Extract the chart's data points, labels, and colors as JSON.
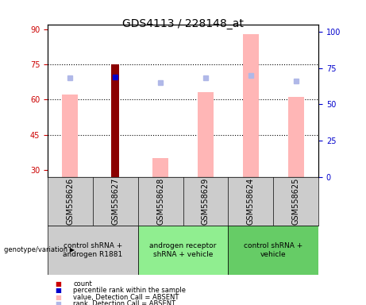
{
  "title": "GDS4113 / 228148_at",
  "samples": [
    "GSM558626",
    "GSM558627",
    "GSM558628",
    "GSM558629",
    "GSM558624",
    "GSM558625"
  ],
  "ylim_left": [
    27,
    92
  ],
  "ylim_right": [
    0,
    105
  ],
  "yticks_left": [
    30,
    45,
    60,
    75,
    90
  ],
  "yticks_right": [
    0,
    25,
    50,
    75,
    100
  ],
  "bar_data": {
    "GSM558626": {
      "count": null,
      "percentile": null,
      "value_absent": 62,
      "rank_absent": 68
    },
    "GSM558627": {
      "count": 75,
      "percentile": 69,
      "value_absent": null,
      "rank_absent": null
    },
    "GSM558628": {
      "count": null,
      "percentile": null,
      "value_absent": 35,
      "rank_absent": 65
    },
    "GSM558629": {
      "count": null,
      "percentile": null,
      "value_absent": 63,
      "rank_absent": 68
    },
    "GSM558624": {
      "count": null,
      "percentile": null,
      "value_absent": 88,
      "rank_absent": 70
    },
    "GSM558625": {
      "count": null,
      "percentile": null,
      "value_absent": 61,
      "rank_absent": 66
    }
  },
  "count_color": "#8b0000",
  "percentile_color": "#0000cc",
  "value_absent_color": "#ffb6b6",
  "rank_absent_color": "#b0b8e8",
  "bar_width": 0.35,
  "count_bar_width": 0.18,
  "ylabel_left_color": "#cc0000",
  "ylabel_right_color": "#0000cc",
  "grid_linestyle": ":",
  "grid_linewidth": 0.8,
  "group_positions": [
    {
      "start": 0,
      "end": 1,
      "color": "#cccccc",
      "label": "control shRNA +\nandrogen R1881"
    },
    {
      "start": 2,
      "end": 3,
      "color": "#90ee90",
      "label": "androgen receptor\nshRNA + vehicle"
    },
    {
      "start": 4,
      "end": 5,
      "color": "#66cc66",
      "label": "control shRNA +\nvehicle"
    }
  ],
  "legend_items": [
    {
      "color": "#cc0000",
      "label": "count"
    },
    {
      "color": "#0000cc",
      "label": "percentile rank within the sample"
    },
    {
      "color": "#ffb6b6",
      "label": "value, Detection Call = ABSENT"
    },
    {
      "color": "#b0b8e8",
      "label": "rank, Detection Call = ABSENT"
    }
  ],
  "bottom_label": "genotype/variation",
  "sample_label_bg": "#cccccc",
  "tick_fontsize": 7,
  "label_fontsize": 7,
  "legend_fontsize": 7,
  "title_fontsize": 10
}
